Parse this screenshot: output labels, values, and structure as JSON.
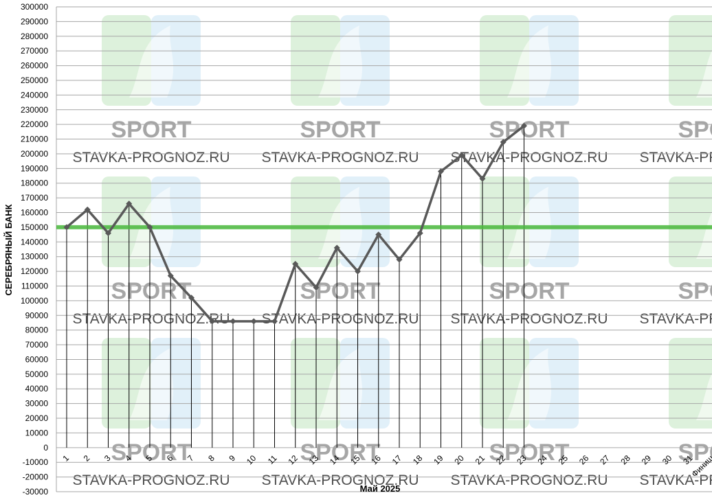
{
  "watermark": {
    "brand": "SPORT",
    "site": "STAVKA-PROGNOZ.RU",
    "green": "#9fd89a",
    "blue": "#a9d4ee"
  },
  "colors": {
    "line": "#595959",
    "reference": "#4cbb3f",
    "grid": "#a6a6a6",
    "drop": "#000000"
  },
  "chart_data": {
    "type": "line",
    "title": "",
    "xlabel": "Май 2025",
    "ylabel": "СЕРЕБРЯНЫЙ БАНК",
    "ylim": [
      -30000,
      300000
    ],
    "ytick_step": 10000,
    "grid": true,
    "categories": [
      "1",
      "2",
      "3",
      "4",
      "5",
      "6",
      "7",
      "8",
      "9",
      "10",
      "11",
      "12",
      "13",
      "14",
      "15",
      "16",
      "17",
      "18",
      "19",
      "20",
      "21",
      "22",
      "23",
      "24",
      "25",
      "26",
      "27",
      "28",
      "29",
      "30",
      "31",
      "Финиш"
    ],
    "series": [
      {
        "values": [
          150000,
          162000,
          146000,
          166000,
          150000,
          117000,
          102000,
          86000,
          86000,
          86000,
          86000,
          125000,
          109000,
          136000,
          120000,
          145000,
          128000,
          146000,
          188000,
          199000,
          183000,
          208000,
          219000,
          null,
          null,
          null,
          null,
          null,
          null,
          null,
          null,
          null
        ]
      }
    ],
    "reference_line": 150000
  }
}
